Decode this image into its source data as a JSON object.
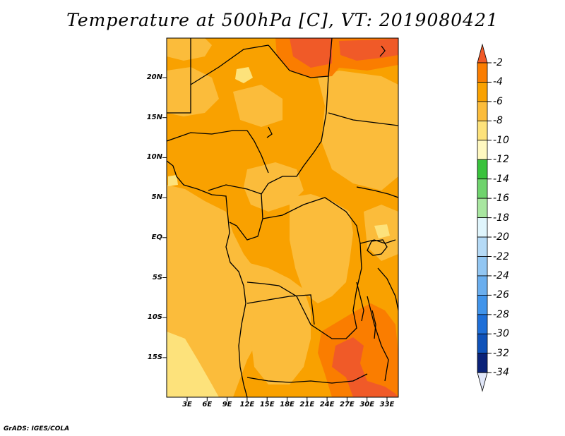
{
  "title": "Temperature at 500hPa [C], VT: 2019080421",
  "credit": "GrADS: IGES/COLA",
  "lat_labels": [
    "20N",
    "15N",
    "10N",
    "5N",
    "EQ",
    "5S",
    "10S",
    "15S"
  ],
  "lon_labels": [
    "3E",
    "6E",
    "9E",
    "12E",
    "15E",
    "18E",
    "21E",
    "24E",
    "27E",
    "30E",
    "33E"
  ],
  "colorbar": {
    "labels": [
      "-2",
      "-4",
      "-6",
      "-8",
      "-10",
      "-12",
      "-14",
      "-16",
      "-18",
      "-20",
      "-22",
      "-24",
      "-26",
      "-28",
      "-30",
      "-32",
      "-34"
    ],
    "colors": [
      "#f05a28",
      "#fa7d00",
      "#f9a100",
      "#fbbc3b",
      "#fde27b",
      "#fff8c0",
      "#39c23c",
      "#6fd36d",
      "#a8e6a0",
      "#e0f5fc",
      "#b5daf6",
      "#92c6f2",
      "#6aaeee",
      "#4194ea",
      "#1e6fd8",
      "#0f52b9",
      "#0a2278",
      "#e0e6f8"
    ]
  },
  "map": {
    "palette": {
      "warmest": "#f05a28",
      "very_warm": "#fa7d00",
      "warm": "#f9a100",
      "mild": "#fbbc3b",
      "cool": "#fde27b"
    }
  }
}
